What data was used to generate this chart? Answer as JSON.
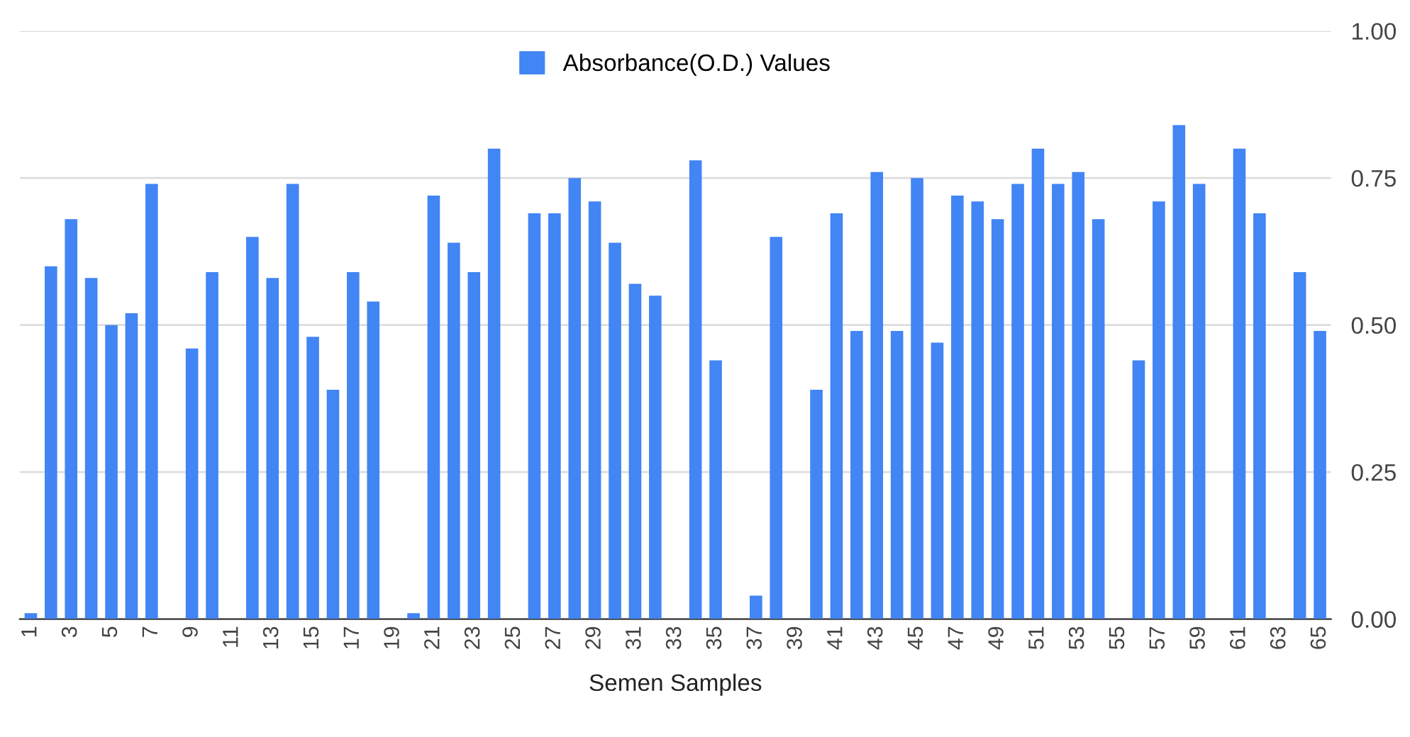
{
  "chart_data": {
    "type": "bar",
    "xlabel": "Semen Samples",
    "categories": [
      "1",
      null,
      "3",
      null,
      "5",
      null,
      "7",
      null,
      "9",
      null,
      "11",
      null,
      "13",
      null,
      "15",
      null,
      "17",
      null,
      "19",
      null,
      "21",
      null,
      "23",
      null,
      "25",
      null,
      "27",
      null,
      "29",
      null,
      "31",
      null,
      "33",
      null,
      "35",
      null,
      "37",
      null,
      "39",
      null,
      "41",
      null,
      "43",
      null,
      "45",
      null,
      "47",
      null,
      "49",
      null,
      "51",
      null,
      "53",
      null,
      "55",
      null,
      "57",
      null,
      "59",
      null,
      "61",
      null,
      "63",
      null,
      "65"
    ],
    "series": [
      {
        "name": "Absorbance(O.D.) Values",
        "color": "#4285f4",
        "values": [
          0.01,
          0.6,
          0.68,
          0.58,
          0.5,
          0.52,
          0.74,
          null,
          0.46,
          0.59,
          null,
          0.65,
          0.58,
          0.74,
          0.48,
          0.39,
          0.59,
          0.54,
          null,
          0.01,
          0.72,
          0.64,
          0.59,
          0.8,
          null,
          0.69,
          0.69,
          0.75,
          0.71,
          0.64,
          0.57,
          0.55,
          null,
          0.78,
          0.44,
          null,
          0.04,
          0.65,
          null,
          0.39,
          0.69,
          0.49,
          0.76,
          0.49,
          0.75,
          0.47,
          0.72,
          0.71,
          0.68,
          0.74,
          0.8,
          0.74,
          0.76,
          0.68,
          null,
          0.44,
          0.71,
          0.84,
          0.74,
          null,
          0.8,
          0.69,
          null,
          0.59,
          0.49
        ]
      }
    ],
    "ylim": [
      0,
      1
    ],
    "yticks": [
      {
        "value": 0,
        "label": "0.00"
      },
      {
        "value": 0.25,
        "label": "0.25"
      },
      {
        "value": 0.5,
        "label": "0.50"
      },
      {
        "value": 0.75,
        "label": "0.75"
      },
      {
        "value": 1,
        "label": "1.00"
      }
    ],
    "grid": "y",
    "legend": "top"
  }
}
